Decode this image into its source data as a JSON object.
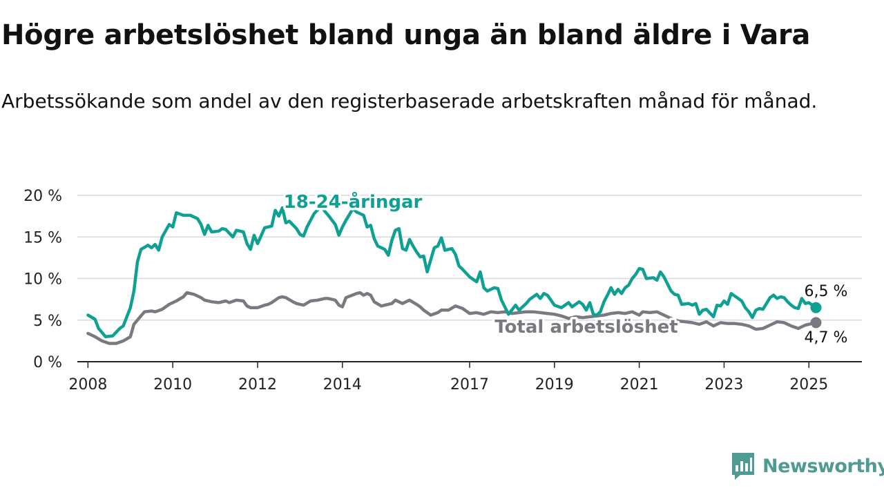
{
  "header": {
    "title": "Högre arbetslöshet bland unga än bland äldre i Vara",
    "subtitle": "Arbetssökande som andel av den registerbaserade arbetskraften månad för månad."
  },
  "brand": {
    "name": "Newsworthy",
    "icon": "bar-chart-speech-bubble-icon",
    "color": "#4f9a92"
  },
  "chart_data": {
    "type": "line",
    "xlabel": "",
    "ylabel": "",
    "ylim": [
      0,
      20
    ],
    "xlim": [
      "2007-10",
      "2026-04"
    ],
    "y_ticks": [
      0,
      5,
      10,
      15,
      20
    ],
    "y_tick_labels": [
      "0 %",
      "5 %",
      "10 %",
      "15 %",
      "20 %"
    ],
    "x_ticks": [
      {
        "label": "2008",
        "date": "2008-01"
      },
      {
        "label": "2010",
        "date": "2010-01"
      },
      {
        "label": "2012",
        "date": "2012-01"
      },
      {
        "label": "2014",
        "date": "2014-01"
      },
      {
        "label": "2017",
        "date": "2017-01"
      },
      {
        "label": "2019",
        "date": "2019-01"
      },
      {
        "label": "2021",
        "date": "2021-01"
      },
      {
        "label": "2023",
        "date": "2023-01"
      },
      {
        "label": "2025",
        "date": "2025-01"
      }
    ],
    "grid": true,
    "legend": "inline",
    "series": [
      {
        "name": "18-24-åringar",
        "color": "#0fa094",
        "end_label": "6,5 %",
        "points": [
          [
            "2008-01",
            5.6
          ],
          [
            "2008-03",
            5.1
          ],
          [
            "2008-04",
            4.0
          ],
          [
            "2008-06",
            3.0
          ],
          [
            "2008-08",
            3.1
          ],
          [
            "2008-10",
            4.0
          ],
          [
            "2008-11",
            4.3
          ],
          [
            "2009-01",
            6.5
          ],
          [
            "2009-02",
            8.5
          ],
          [
            "2009-03",
            12.0
          ],
          [
            "2009-04",
            13.5
          ],
          [
            "2009-06",
            14.0
          ],
          [
            "2009-07",
            13.7
          ],
          [
            "2009-08",
            14.1
          ],
          [
            "2009-09",
            13.4
          ],
          [
            "2009-10",
            15.0
          ],
          [
            "2009-12",
            16.5
          ],
          [
            "2010-01",
            16.2
          ],
          [
            "2010-02",
            17.9
          ],
          [
            "2010-04",
            17.6
          ],
          [
            "2010-06",
            17.6
          ],
          [
            "2010-08",
            17.2
          ],
          [
            "2010-09",
            16.5
          ],
          [
            "2010-10",
            15.3
          ],
          [
            "2010-11",
            16.4
          ],
          [
            "2010-12",
            15.6
          ],
          [
            "2011-02",
            15.7
          ],
          [
            "2011-03",
            16.0
          ],
          [
            "2011-04",
            15.9
          ],
          [
            "2011-06",
            15.0
          ],
          [
            "2011-07",
            15.8
          ],
          [
            "2011-09",
            15.6
          ],
          [
            "2011-10",
            14.2
          ],
          [
            "2011-11",
            13.5
          ],
          [
            "2011-12",
            15.2
          ],
          [
            "2012-01",
            14.2
          ],
          [
            "2012-03",
            16.1
          ],
          [
            "2012-05",
            16.3
          ],
          [
            "2012-06",
            18.2
          ],
          [
            "2012-07",
            17.5
          ],
          [
            "2012-08",
            18.5
          ],
          [
            "2012-09",
            16.7
          ],
          [
            "2012-10",
            16.9
          ],
          [
            "2012-12",
            16.0
          ],
          [
            "2013-01",
            15.3
          ],
          [
            "2013-02",
            15.1
          ],
          [
            "2013-03",
            16.2
          ],
          [
            "2013-05",
            17.8
          ],
          [
            "2013-07",
            18.7
          ],
          [
            "2013-08",
            18.1
          ],
          [
            "2013-09",
            17.6
          ],
          [
            "2013-11",
            16.5
          ],
          [
            "2013-12",
            15.2
          ],
          [
            "2014-01",
            16.2
          ],
          [
            "2014-02",
            17.0
          ],
          [
            "2014-04",
            18.4
          ],
          [
            "2014-05",
            18.0
          ],
          [
            "2014-07",
            17.6
          ],
          [
            "2014-08",
            16.2
          ],
          [
            "2014-09",
            16.4
          ],
          [
            "2014-10",
            14.8
          ],
          [
            "2014-11",
            13.9
          ],
          [
            "2015-01",
            13.5
          ],
          [
            "2015-02",
            12.8
          ],
          [
            "2015-03",
            14.6
          ],
          [
            "2015-04",
            15.8
          ],
          [
            "2015-05",
            16.0
          ],
          [
            "2015-06",
            13.6
          ],
          [
            "2015-07",
            13.4
          ],
          [
            "2015-08",
            14.7
          ],
          [
            "2015-09",
            13.9
          ],
          [
            "2015-10",
            13.2
          ],
          [
            "2015-11",
            12.6
          ],
          [
            "2015-12",
            12.7
          ],
          [
            "2016-01",
            10.8
          ],
          [
            "2016-03",
            13.7
          ],
          [
            "2016-04",
            13.9
          ],
          [
            "2016-05",
            14.9
          ],
          [
            "2016-06",
            13.4
          ],
          [
            "2016-08",
            13.6
          ],
          [
            "2016-09",
            12.9
          ],
          [
            "2016-10",
            11.5
          ],
          [
            "2016-11",
            11.1
          ],
          [
            "2017-01",
            10.2
          ],
          [
            "2017-03",
            9.6
          ],
          [
            "2017-04",
            10.8
          ],
          [
            "2017-05",
            8.9
          ],
          [
            "2017-06",
            8.5
          ],
          [
            "2017-08",
            8.9
          ],
          [
            "2017-09",
            8.8
          ],
          [
            "2017-10",
            7.4
          ],
          [
            "2017-12",
            5.7
          ],
          [
            "2018-02",
            6.8
          ],
          [
            "2018-03",
            6.2
          ],
          [
            "2018-05",
            7.0
          ],
          [
            "2018-06",
            7.5
          ],
          [
            "2018-08",
            8.1
          ],
          [
            "2018-09",
            7.6
          ],
          [
            "2018-10",
            8.2
          ],
          [
            "2018-11",
            8.0
          ],
          [
            "2019-01",
            6.8
          ],
          [
            "2019-03",
            6.5
          ],
          [
            "2019-05",
            7.1
          ],
          [
            "2019-06",
            6.6
          ],
          [
            "2019-08",
            7.2
          ],
          [
            "2019-09",
            6.9
          ],
          [
            "2019-10",
            6.2
          ],
          [
            "2019-11",
            7.1
          ],
          [
            "2019-12",
            5.7
          ],
          [
            "2020-01",
            5.6
          ],
          [
            "2020-02",
            6.0
          ],
          [
            "2020-03",
            7.2
          ],
          [
            "2020-04",
            8.0
          ],
          [
            "2020-05",
            8.9
          ],
          [
            "2020-06",
            8.1
          ],
          [
            "2020-07",
            8.7
          ],
          [
            "2020-08",
            8.2
          ],
          [
            "2020-09",
            8.9
          ],
          [
            "2020-10",
            9.2
          ],
          [
            "2020-11",
            10.0
          ],
          [
            "2020-12",
            10.5
          ],
          [
            "2021-01",
            11.2
          ],
          [
            "2021-02",
            11.1
          ],
          [
            "2021-03",
            10.0
          ],
          [
            "2021-05",
            10.1
          ],
          [
            "2021-06",
            9.8
          ],
          [
            "2021-07",
            10.8
          ],
          [
            "2021-08",
            10.2
          ],
          [
            "2021-10",
            8.5
          ],
          [
            "2021-11",
            8.1
          ],
          [
            "2021-12",
            8.0
          ],
          [
            "2022-01",
            6.9
          ],
          [
            "2022-03",
            7.0
          ],
          [
            "2022-04",
            6.8
          ],
          [
            "2022-05",
            7.0
          ],
          [
            "2022-06",
            5.7
          ],
          [
            "2022-07",
            6.2
          ],
          [
            "2022-08",
            6.3
          ],
          [
            "2022-10",
            5.4
          ],
          [
            "2022-11",
            6.8
          ],
          [
            "2022-12",
            6.7
          ],
          [
            "2023-01",
            7.3
          ],
          [
            "2023-02",
            6.9
          ],
          [
            "2023-03",
            8.2
          ],
          [
            "2023-04",
            7.9
          ],
          [
            "2023-06",
            7.3
          ],
          [
            "2023-07",
            6.5
          ],
          [
            "2023-08",
            6.0
          ],
          [
            "2023-09",
            5.3
          ],
          [
            "2023-10",
            6.2
          ],
          [
            "2023-11",
            6.4
          ],
          [
            "2023-12",
            6.3
          ],
          [
            "2024-01",
            7.0
          ],
          [
            "2024-02",
            7.7
          ],
          [
            "2024-03",
            8.0
          ],
          [
            "2024-04",
            7.6
          ],
          [
            "2024-05",
            7.8
          ],
          [
            "2024-06",
            7.7
          ],
          [
            "2024-07",
            7.2
          ],
          [
            "2024-08",
            6.8
          ],
          [
            "2024-09",
            6.5
          ],
          [
            "2024-10",
            6.4
          ],
          [
            "2024-11",
            7.6
          ],
          [
            "2024-12",
            7.0
          ],
          [
            "2025-01",
            7.1
          ],
          [
            "2025-03",
            6.5
          ]
        ]
      },
      {
        "name": "Total arbetslöshet",
        "color": "#7a7880",
        "end_label": "4,7 %",
        "points": [
          [
            "2008-01",
            3.4
          ],
          [
            "2008-03",
            3.0
          ],
          [
            "2008-05",
            2.5
          ],
          [
            "2008-07",
            2.2
          ],
          [
            "2008-09",
            2.2
          ],
          [
            "2008-11",
            2.5
          ],
          [
            "2009-01",
            3.0
          ],
          [
            "2009-02",
            4.5
          ],
          [
            "2009-04",
            5.5
          ],
          [
            "2009-05",
            6.0
          ],
          [
            "2009-07",
            6.1
          ],
          [
            "2009-08",
            6.0
          ],
          [
            "2009-10",
            6.3
          ],
          [
            "2009-12",
            6.9
          ],
          [
            "2010-02",
            7.3
          ],
          [
            "2010-04",
            7.8
          ],
          [
            "2010-05",
            8.3
          ],
          [
            "2010-07",
            8.1
          ],
          [
            "2010-09",
            7.7
          ],
          [
            "2010-10",
            7.4
          ],
          [
            "2010-12",
            7.2
          ],
          [
            "2011-02",
            7.1
          ],
          [
            "2011-04",
            7.3
          ],
          [
            "2011-05",
            7.1
          ],
          [
            "2011-07",
            7.4
          ],
          [
            "2011-09",
            7.3
          ],
          [
            "2011-10",
            6.7
          ],
          [
            "2011-11",
            6.5
          ],
          [
            "2012-01",
            6.5
          ],
          [
            "2012-03",
            6.8
          ],
          [
            "2012-04",
            6.9
          ],
          [
            "2012-05",
            7.1
          ],
          [
            "2012-07",
            7.7
          ],
          [
            "2012-08",
            7.8
          ],
          [
            "2012-09",
            7.7
          ],
          [
            "2012-11",
            7.2
          ],
          [
            "2012-12",
            7.0
          ],
          [
            "2013-02",
            6.8
          ],
          [
            "2013-04",
            7.3
          ],
          [
            "2013-06",
            7.4
          ],
          [
            "2013-08",
            7.6
          ],
          [
            "2013-09",
            7.6
          ],
          [
            "2013-11",
            7.4
          ],
          [
            "2013-12",
            6.8
          ],
          [
            "2014-01",
            6.6
          ],
          [
            "2014-02",
            7.7
          ],
          [
            "2014-05",
            8.2
          ],
          [
            "2014-06",
            8.3
          ],
          [
            "2014-07",
            8.0
          ],
          [
            "2014-08",
            8.2
          ],
          [
            "2014-09",
            8.0
          ],
          [
            "2014-10",
            7.2
          ],
          [
            "2014-12",
            6.7
          ],
          [
            "2015-01",
            6.8
          ],
          [
            "2015-03",
            7.0
          ],
          [
            "2015-04",
            7.4
          ],
          [
            "2015-06",
            7.0
          ],
          [
            "2015-07",
            7.2
          ],
          [
            "2015-08",
            7.4
          ],
          [
            "2015-10",
            6.9
          ],
          [
            "2015-11",
            6.6
          ],
          [
            "2015-12",
            6.2
          ],
          [
            "2016-02",
            5.6
          ],
          [
            "2016-04",
            5.9
          ],
          [
            "2016-05",
            6.2
          ],
          [
            "2016-07",
            6.2
          ],
          [
            "2016-09",
            6.7
          ],
          [
            "2016-11",
            6.4
          ],
          [
            "2017-01",
            5.8
          ],
          [
            "2017-03",
            5.9
          ],
          [
            "2017-05",
            5.7
          ],
          [
            "2017-07",
            6.0
          ],
          [
            "2017-09",
            5.9
          ],
          [
            "2017-11",
            6.0
          ],
          [
            "2018-01",
            5.8
          ],
          [
            "2018-03",
            5.9
          ],
          [
            "2018-05",
            6.0
          ],
          [
            "2018-07",
            6.0
          ],
          [
            "2018-09",
            5.9
          ],
          [
            "2018-11",
            5.8
          ],
          [
            "2019-01",
            5.7
          ],
          [
            "2019-03",
            5.5
          ],
          [
            "2019-05",
            5.2
          ],
          [
            "2019-07",
            5.4
          ],
          [
            "2019-09",
            5.3
          ],
          [
            "2019-11",
            5.4
          ],
          [
            "2020-01",
            5.5
          ],
          [
            "2020-03",
            5.6
          ],
          [
            "2020-05",
            5.8
          ],
          [
            "2020-07",
            5.9
          ],
          [
            "2020-09",
            5.8
          ],
          [
            "2020-11",
            6.0
          ],
          [
            "2021-01",
            5.6
          ],
          [
            "2021-02",
            6.0
          ],
          [
            "2021-04",
            5.9
          ],
          [
            "2021-06",
            6.0
          ],
          [
            "2021-08",
            5.6
          ],
          [
            "2021-10",
            5.2
          ],
          [
            "2021-12",
            4.9
          ],
          [
            "2022-02",
            4.8
          ],
          [
            "2022-04",
            4.7
          ],
          [
            "2022-06",
            4.5
          ],
          [
            "2022-08",
            4.8
          ],
          [
            "2022-10",
            4.3
          ],
          [
            "2022-12",
            4.7
          ],
          [
            "2023-02",
            4.6
          ],
          [
            "2023-04",
            4.6
          ],
          [
            "2023-06",
            4.5
          ],
          [
            "2023-08",
            4.3
          ],
          [
            "2023-10",
            3.9
          ],
          [
            "2023-12",
            4.0
          ],
          [
            "2024-02",
            4.4
          ],
          [
            "2024-04",
            4.8
          ],
          [
            "2024-06",
            4.7
          ],
          [
            "2024-08",
            4.3
          ],
          [
            "2024-10",
            4.0
          ],
          [
            "2024-12",
            4.4
          ],
          [
            "2025-02",
            4.6
          ],
          [
            "2025-03",
            4.7
          ]
        ]
      }
    ]
  }
}
